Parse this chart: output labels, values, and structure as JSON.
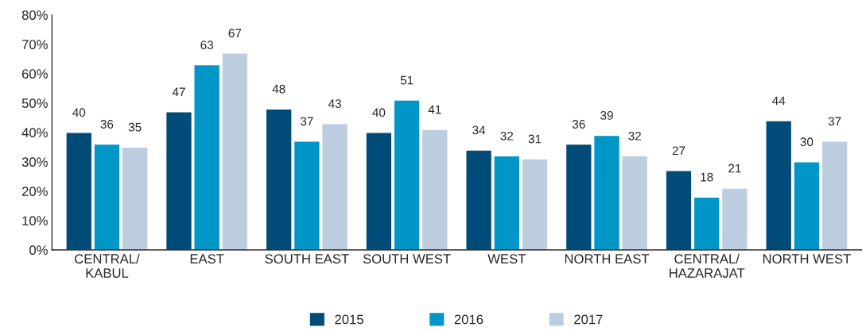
{
  "chart_data": {
    "type": "bar",
    "categories": [
      "CENTRAL/\nKABUL",
      "EAST",
      "SOUTH EAST",
      "SOUTH WEST",
      "WEST",
      "NORTH EAST",
      "CENTRAL/\nHAZARAJAT",
      "NORTH WEST"
    ],
    "series": [
      {
        "name": "2015",
        "color": "#004b78",
        "values": [
          40,
          47,
          48,
          40,
          34,
          36,
          27,
          44
        ]
      },
      {
        "name": "2016",
        "color": "#0096c8",
        "values": [
          36,
          63,
          37,
          51,
          32,
          39,
          18,
          30
        ]
      },
      {
        "name": "2017",
        "color": "#bccde0",
        "values": [
          35,
          67,
          43,
          41,
          31,
          32,
          21,
          37
        ]
      }
    ],
    "ylim": [
      0,
      80
    ],
    "yticks": [
      {
        "value": 0,
        "label": "0%"
      },
      {
        "value": 10,
        "label": "10%"
      },
      {
        "value": 20,
        "label": "20%"
      },
      {
        "value": 30,
        "label": "30%"
      },
      {
        "value": 40,
        "label": "40%"
      },
      {
        "value": 50,
        "label": "50%"
      },
      {
        "value": 60,
        "label": "60%"
      },
      {
        "value": 70,
        "label": "70%"
      },
      {
        "value": 80,
        "label": "80%"
      }
    ],
    "data_labels": true,
    "grid": false,
    "legend": "bottom"
  }
}
